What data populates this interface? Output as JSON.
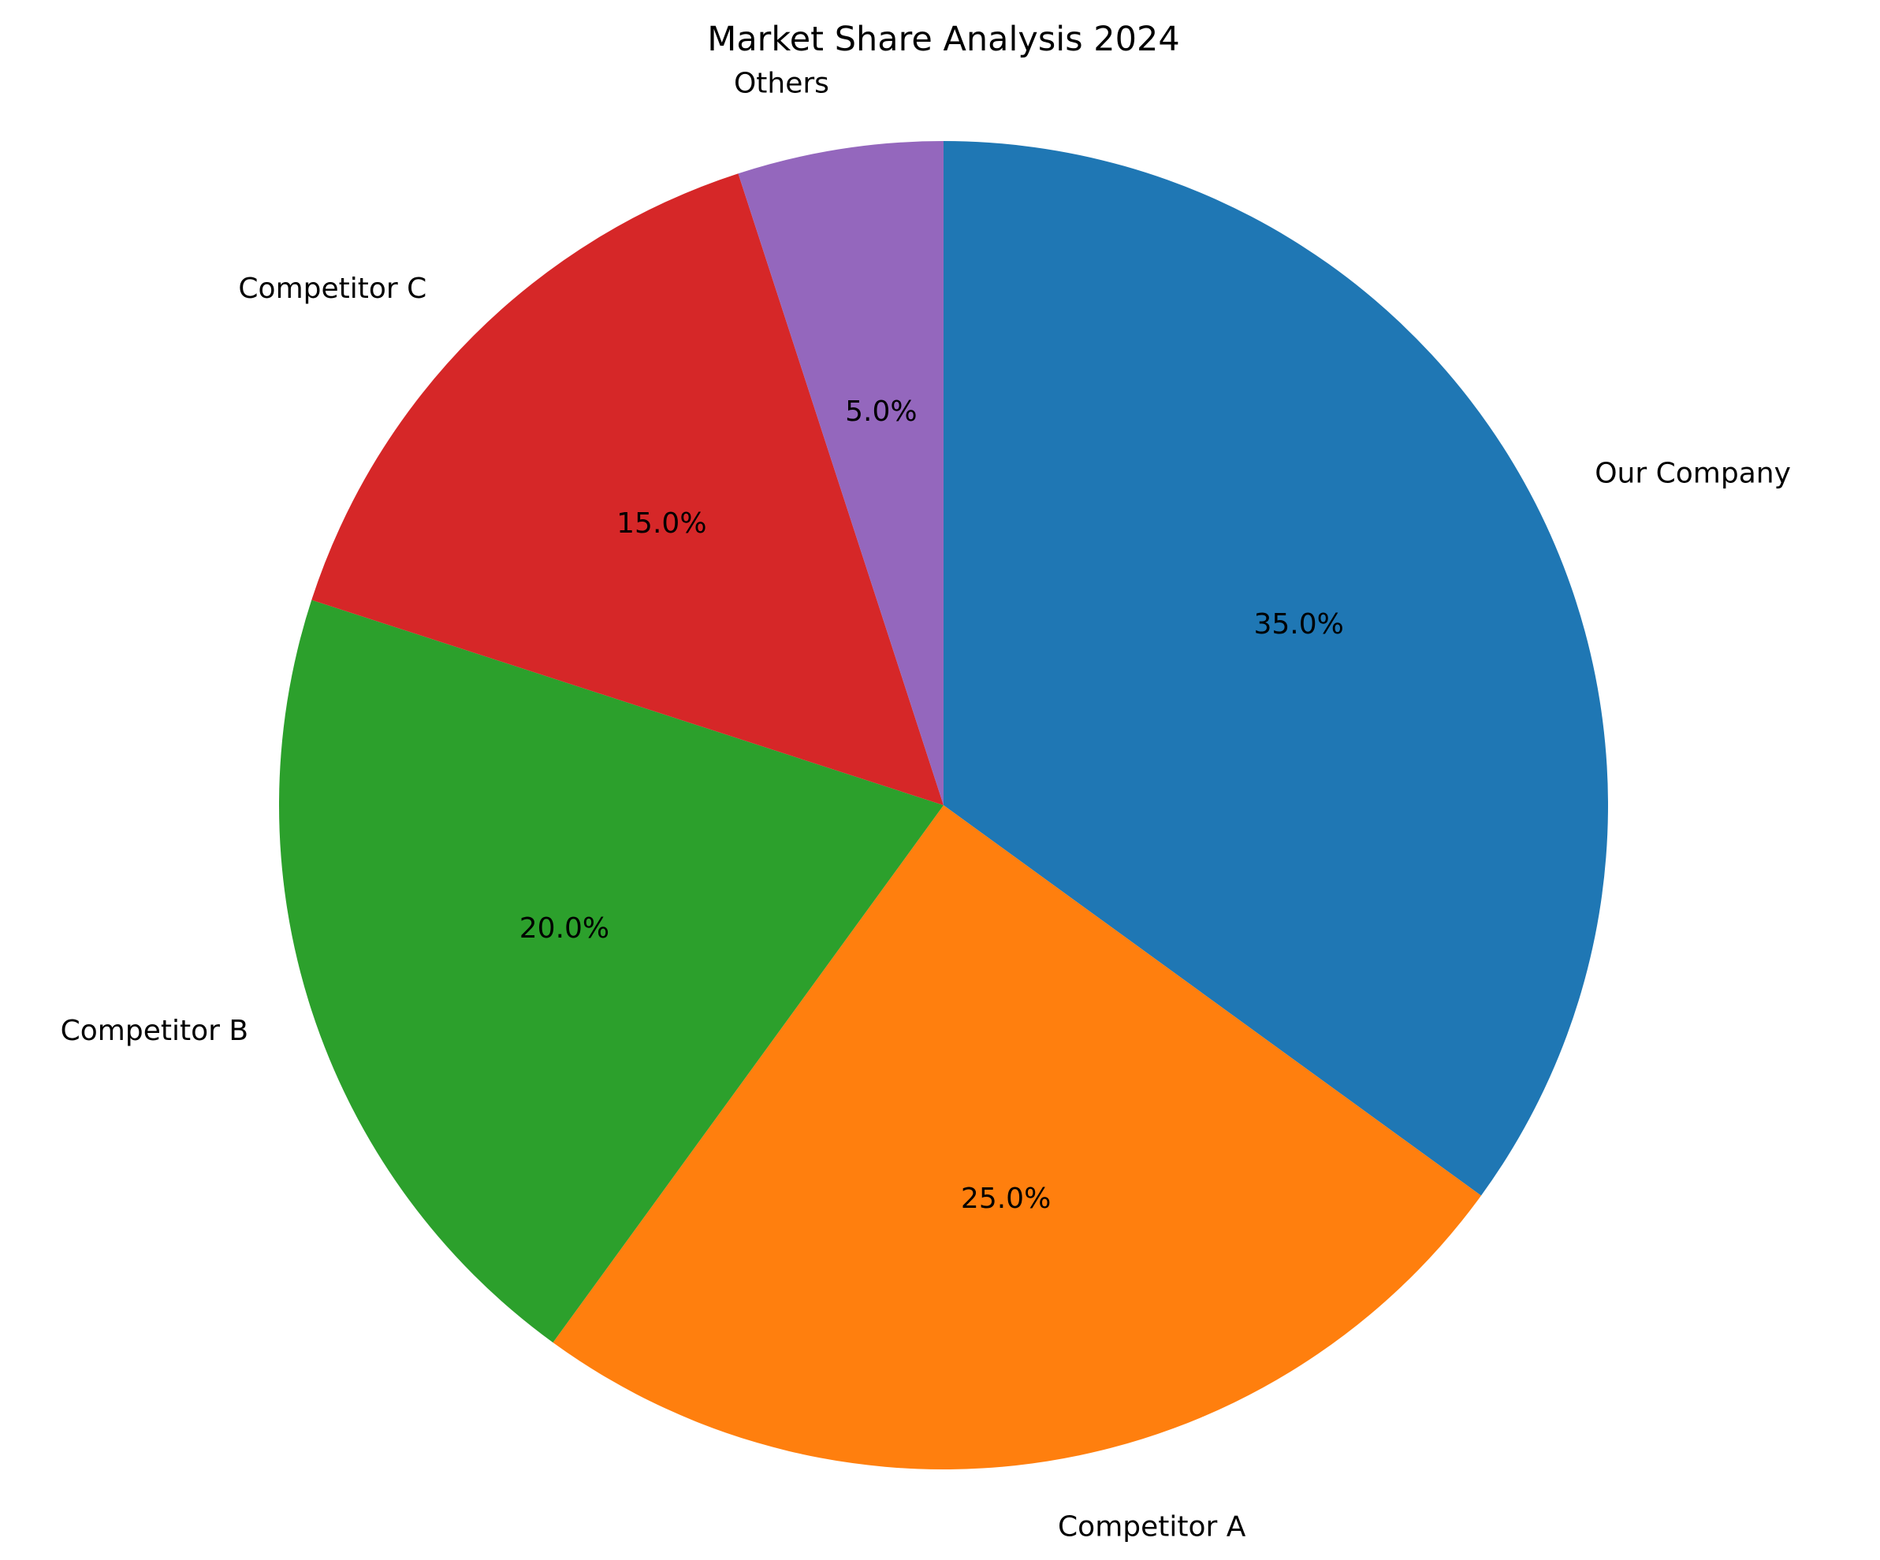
{
  "chart_data": {
    "type": "pie",
    "title": "Market Share Analysis 2024",
    "start_angle_deg": 90,
    "direction": "clockwise",
    "slices": [
      {
        "label": "Our Company",
        "value": 35.0,
        "pct_text": "35.0%",
        "color": "#1f77b4"
      },
      {
        "label": "Competitor A",
        "value": 25.0,
        "pct_text": "25.0%",
        "color": "#ff7f0e"
      },
      {
        "label": "Competitor B",
        "value": 20.0,
        "pct_text": "20.0%",
        "color": "#2ca02c"
      },
      {
        "label": "Competitor C",
        "value": 15.0,
        "pct_text": "15.0%",
        "color": "#d62728"
      },
      {
        "label": "Others",
        "value": 5.0,
        "pct_text": "5.0%",
        "color": "#9467bd"
      }
    ]
  }
}
